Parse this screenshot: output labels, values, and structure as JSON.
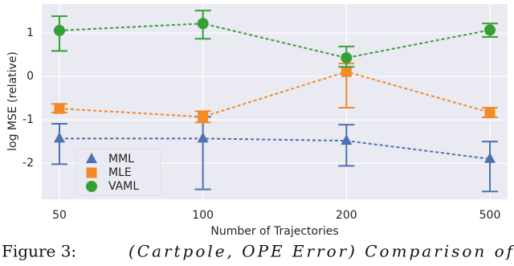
{
  "chart_data": {
    "type": "line",
    "x_label": "Number of Trajectories",
    "y_label": "log MSE (relative)",
    "categories": [
      "50",
      "100",
      "200",
      "500"
    ],
    "ylim": [
      -2.83,
      1.67
    ],
    "yticks": [
      -2,
      -1,
      0,
      1
    ],
    "grid": true,
    "legend": "lower left",
    "series": [
      {
        "name": "MML",
        "color": "#4c72b0",
        "marker": "triangle",
        "values": [
          -1.43,
          -1.43,
          -1.48,
          -1.9
        ],
        "lower": [
          -2.02,
          -2.6,
          -2.06,
          -2.65
        ],
        "upper": [
          -1.09,
          -0.93,
          -1.11,
          -1.5
        ]
      },
      {
        "name": "MLE",
        "color": "#f28a26",
        "marker": "square",
        "values": [
          -0.74,
          -0.93,
          0.11,
          -0.83
        ],
        "lower": [
          -0.83,
          -1.06,
          -0.72,
          -0.94
        ],
        "upper": [
          -0.63,
          -0.8,
          0.3,
          -0.72
        ]
      },
      {
        "name": "VAML",
        "color": "#35a035",
        "marker": "circle",
        "values": [
          1.06,
          1.22,
          0.43,
          1.07
        ],
        "lower": [
          0.59,
          0.87,
          0.22,
          0.91
        ],
        "upper": [
          1.39,
          1.52,
          0.69,
          1.22
        ]
      }
    ]
  },
  "caption": {
    "label": "Figure 3:",
    "text": "(Cartpole, OPE Error) Comparison of"
  }
}
